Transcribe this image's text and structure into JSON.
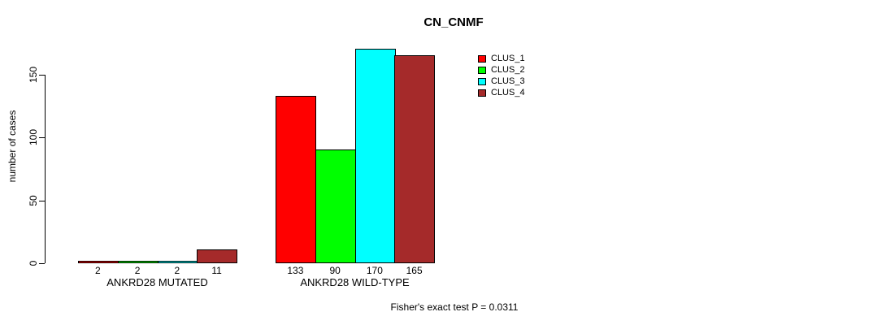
{
  "title": "CN_CNMF",
  "colors": {
    "background": "#FFFFFF",
    "foreground": "#000000",
    "clus_1": "#FF0000",
    "clus_2": "#00FF00",
    "clus_3": "#00FFFF",
    "clus_4": "#A52A2A"
  },
  "chart_data": {
    "type": "bar",
    "title": "CN_CNMF",
    "xlabel": "",
    "ylabel": "number of cases",
    "ylim": [
      0,
      175
    ],
    "yticks": [
      0,
      50,
      100,
      150
    ],
    "grid": false,
    "legend_position": "top-right",
    "categories": [
      "ANKRD28 MUTATED",
      "ANKRD28 WILD-TYPE"
    ],
    "series": [
      {
        "name": "CLUS_1",
        "color": "#FF0000",
        "values": [
          2,
          133
        ]
      },
      {
        "name": "CLUS_2",
        "color": "#00FF00",
        "values": [
          2,
          90
        ]
      },
      {
        "name": "CLUS_3",
        "color": "#00FFFF",
        "values": [
          2,
          170
        ]
      },
      {
        "name": "CLUS_4",
        "color": "#A52A2A",
        "values": [
          11,
          165
        ]
      }
    ],
    "bar_value_labels": [
      [
        "2",
        "2",
        "2",
        "11"
      ],
      [
        "133",
        "90",
        "170",
        "165"
      ]
    ],
    "annotation": "Fisher's exact test P = 0.0311"
  }
}
